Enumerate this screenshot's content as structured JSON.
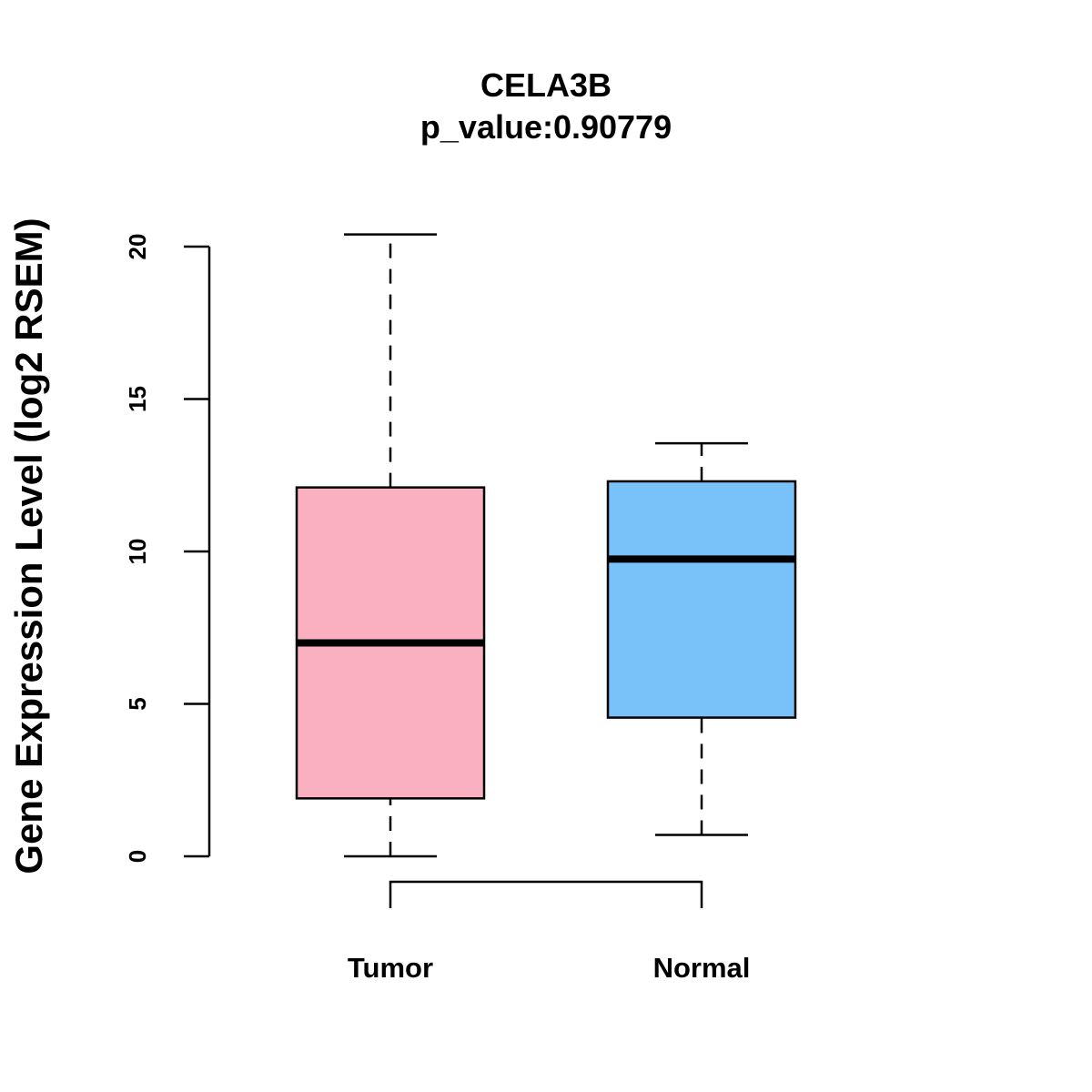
{
  "chart_data": {
    "type": "boxplot",
    "title": "CELA3B",
    "subtitle": "p_value:0.90779",
    "xlabel": "",
    "ylabel": "Gene Expression Level (log2 RSEM)",
    "ylim": [
      0,
      20
    ],
    "yticks": [
      0,
      5,
      10,
      15,
      20
    ],
    "ytick_labels": [
      "0",
      "5",
      "10",
      "15",
      "20"
    ],
    "grid": false,
    "categories": [
      "Tumor",
      "Normal"
    ],
    "boxes": [
      {
        "name": "Tumor",
        "whisker_low": 0.0,
        "q1": 1.9,
        "median": 7.0,
        "q3": 12.1,
        "whisker_high": 20.4,
        "color": "#FBB0C2"
      },
      {
        "name": "Normal",
        "whisker_low": 0.7,
        "q1": 4.55,
        "median": 9.75,
        "q3": 12.3,
        "whisker_high": 13.55,
        "color": "#79C1F9"
      }
    ],
    "comparison_bracket": [
      "Tumor",
      "Normal"
    ]
  }
}
